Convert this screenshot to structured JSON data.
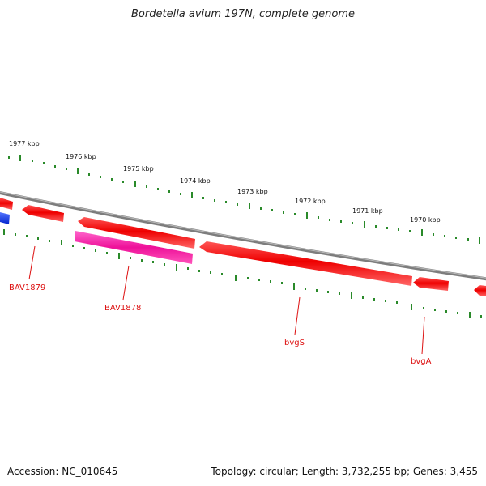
{
  "title": "Bordetella avium 197N, complete genome",
  "accession": "Accession: NC_010645",
  "summary": "Topology: circular; Length: 3,732,255 bp; Genes: 3,455",
  "colors": {
    "backbone": "#888888",
    "gene": "#ee0000",
    "gene_highlight": "#ff2288",
    "gene_blue": "#1133ee",
    "tick": "#228822",
    "label": "#dd1111"
  },
  "kbp_labels": [
    "1977 kbp",
    "1976 kbp",
    "1975 kbp",
    "1974 kbp",
    "1973 kbp",
    "1972 kbp",
    "1971 kbp",
    "1970 kbp"
  ],
  "gene_labels": [
    "BAV1879",
    "BAV1878",
    "bvgS",
    "bvgA"
  ]
}
